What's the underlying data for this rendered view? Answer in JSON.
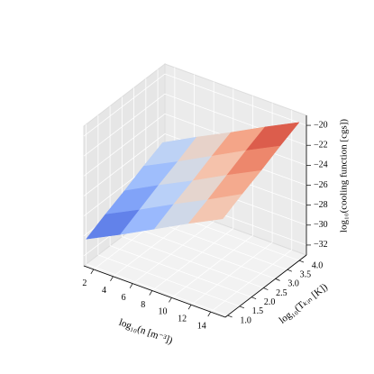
{
  "chart_data": {
    "type": "surface",
    "xlabel": "log₁₀(n [m⁻³])",
    "ylabel": "log₁₀(Tₖᵢₙ [K])",
    "zlabel": "log₁₀(cooling function [cgs])",
    "x": [
      1,
      4.5,
      8,
      11.5,
      15
    ],
    "y": [
      1,
      1.8,
      2.6,
      3.4,
      4.2
    ],
    "z": [
      [
        -30.5,
        -28.8,
        -27.0,
        -25.2,
        -23.5
      ],
      [
        -29.5,
        -27.8,
        -26.0,
        -24.3,
        -22.5
      ],
      [
        -28.6,
        -26.8,
        -25.1,
        -23.3,
        -21.6
      ],
      [
        -27.6,
        -25.9,
        -24.1,
        -22.3,
        -20.6
      ],
      [
        -26.7,
        -24.9,
        -23.2,
        -21.4,
        -19.7
      ]
    ],
    "colormap": "coolwarm",
    "xlim": [
      1,
      15.5
    ],
    "ylim": [
      0.9,
      4.3
    ],
    "zlim": [
      -33,
      -19
    ],
    "xticks": [
      2,
      4,
      6,
      8,
      10,
      12,
      14
    ],
    "yticks": [
      {
        "value": 1,
        "label": "1.0"
      },
      1.5,
      {
        "value": 2,
        "label": "2.0"
      },
      2.5,
      {
        "value": 3,
        "label": "3.0"
      },
      3.5,
      {
        "value": 4,
        "label": "4.0"
      }
    ],
    "zticks": [
      {
        "value": -32,
        "label": "−32"
      },
      {
        "value": -30,
        "label": "−30"
      },
      {
        "value": -28,
        "label": "−28"
      },
      {
        "value": -26,
        "label": "−26"
      },
      {
        "value": -24,
        "label": "−24"
      },
      {
        "value": -22,
        "label": "−22"
      },
      {
        "value": -20,
        "label": "−20"
      }
    ],
    "grid": true
  }
}
